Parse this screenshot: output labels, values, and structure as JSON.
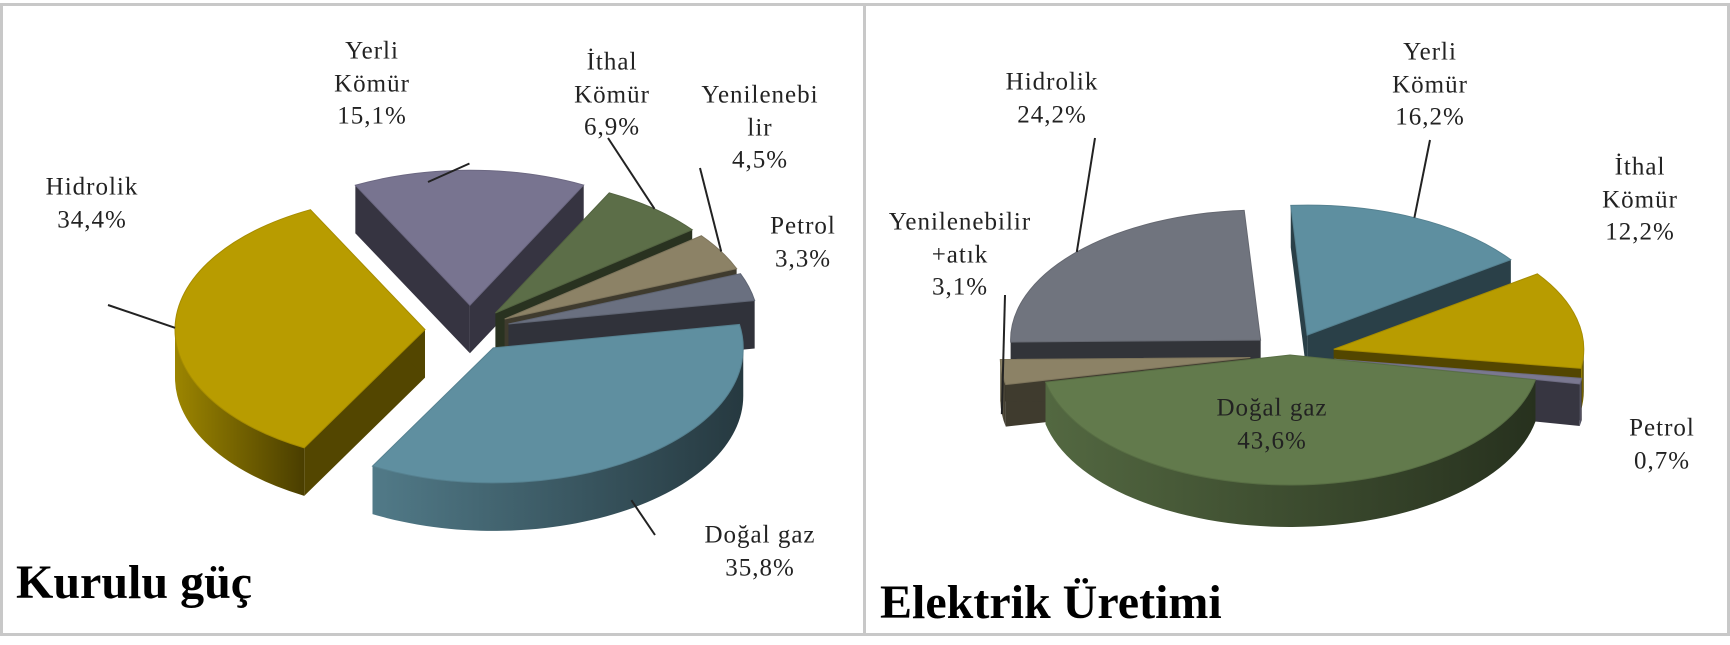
{
  "chart_data": [
    {
      "type": "pie",
      "title": "Kurulu güç",
      "categories": [
        "Doğal gaz",
        "Hidrolik",
        "Yerli Kömür",
        "İthal Kömür",
        "Yenilenebilir",
        "Petrol"
      ],
      "values": [
        35.8,
        34.4,
        15.1,
        6.9,
        4.5,
        3.3
      ],
      "value_labels": [
        "35,8%",
        "34,4%",
        "15,1%",
        "6,9%",
        "4,5%",
        "3,3%"
      ],
      "colors": [
        "#5f8fa0",
        "#b89c00",
        "#787490",
        "#5c6e48",
        "#8c8266",
        "#6a7080"
      ]
    },
    {
      "type": "pie",
      "title": "Elektrik Üretimi",
      "categories": [
        "Doğal gaz",
        "Yenilenebilir+atık",
        "Hidrolik",
        "Yerli Kömür",
        "İthal Kömür",
        "Petrol"
      ],
      "values": [
        43.6,
        3.1,
        24.2,
        16.2,
        12.2,
        0.7
      ],
      "value_labels": [
        "43,6%",
        "3,1%",
        "24,2%",
        "16,2%",
        "12,2%",
        "0,7%"
      ],
      "colors": [
        "#627a4c",
        "#8c8266",
        "#70747e",
        "#5e8fa0",
        "#b89c00",
        "#7a7890"
      ]
    }
  ]
}
